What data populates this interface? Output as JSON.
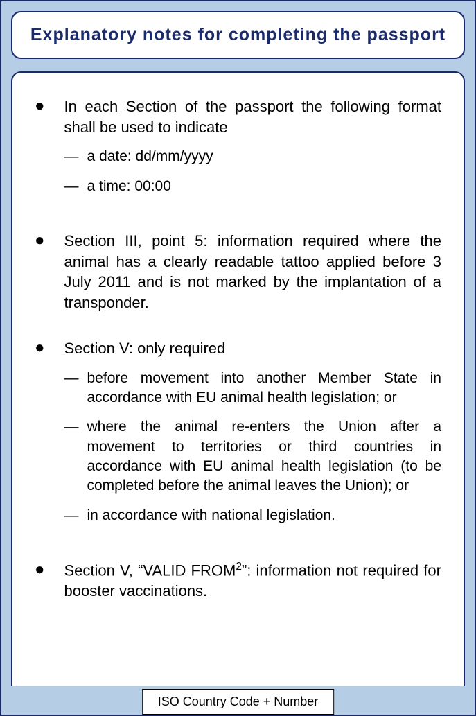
{
  "colors": {
    "outer_border": "#1a2a6c",
    "outer_bg": "#b5cde5",
    "box_bg": "#ffffff",
    "title_color": "#1a2a6c",
    "text_color": "#000000"
  },
  "typography": {
    "title_fontsize": 25,
    "body_fontsize": 22,
    "sub_fontsize": 21,
    "footer_fontsize": 18
  },
  "title": "Explanatory notes for completing the passport",
  "bullets": [
    {
      "text": "In each Section of the passport the following format shall be used to indicate",
      "subs": [
        "a date: dd/mm/yyyy",
        "a time: 00:00"
      ]
    },
    {
      "text": "Section III, point 5: information required where the animal has a clearly readable tattoo applied before 3 July 2011 and is not marked by the implantation of a transponder.",
      "subs": []
    },
    {
      "text": "Section V: only required",
      "subs": [
        "before movement into another Member State in accordance with EU animal health legislation; or",
        "where the animal re-enters the Union after a movement to territories or third countries in accordance with EU animal health legislation (to be completed before the animal leaves the Union); or",
        "in accordance with national legislation."
      ]
    },
    {
      "text_html": "Section V, “VALID FROM<sup>2</sup>”: information not required for booster vaccinations.",
      "subs": []
    }
  ],
  "footer": "ISO Country Code + Number"
}
